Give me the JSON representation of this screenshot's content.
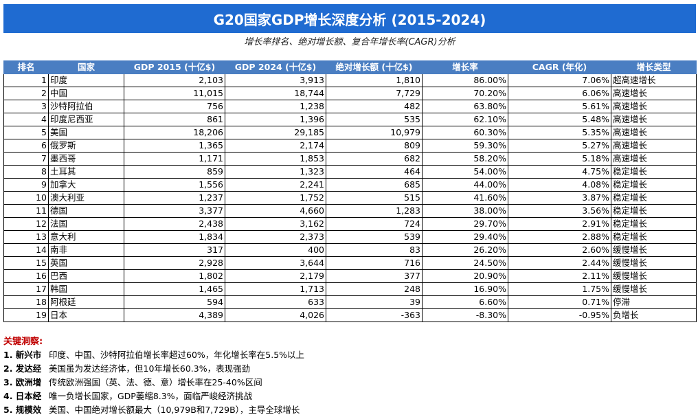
{
  "title": "G20国家GDP增长深度分析 (2015-2024)",
  "subtitle": "增长率排名、绝对增长额、复合年增长率(CAGR)分析",
  "headers": [
    "排名",
    "国家",
    "GDP 2015 (十亿$)",
    "GDP 2024 (十亿$)",
    "绝对增长额 (十亿$)",
    "增长率",
    "CAGR (年化)",
    "增长类型"
  ],
  "rows": [
    [
      "1",
      "印度",
      "2,103",
      "3,913",
      "1,810",
      "86.00%",
      "7.06%",
      "超高速增长"
    ],
    [
      "2",
      "中国",
      "11,015",
      "18,744",
      "7,729",
      "70.20%",
      "6.06%",
      "高速增长"
    ],
    [
      "3",
      "沙特阿拉伯",
      "756",
      "1,238",
      "482",
      "63.80%",
      "5.61%",
      "高速增长"
    ],
    [
      "4",
      "印度尼西亚",
      "861",
      "1,396",
      "535",
      "62.10%",
      "5.48%",
      "高速增长"
    ],
    [
      "5",
      "美国",
      "18,206",
      "29,185",
      "10,979",
      "60.30%",
      "5.35%",
      "高速增长"
    ],
    [
      "6",
      "俄罗斯",
      "1,365",
      "2,174",
      "809",
      "59.30%",
      "5.27%",
      "高速增长"
    ],
    [
      "7",
      "墨西哥",
      "1,171",
      "1,853",
      "682",
      "58.20%",
      "5.18%",
      "高速增长"
    ],
    [
      "8",
      "土耳其",
      "859",
      "1,323",
      "464",
      "54.00%",
      "4.75%",
      "稳定增长"
    ],
    [
      "9",
      "加拿大",
      "1,556",
      "2,241",
      "685",
      "44.00%",
      "4.08%",
      "稳定增长"
    ],
    [
      "10",
      "澳大利亚",
      "1,237",
      "1,752",
      "515",
      "41.60%",
      "3.87%",
      "稳定增长"
    ],
    [
      "11",
      "德国",
      "3,377",
      "4,660",
      "1,283",
      "38.00%",
      "3.56%",
      "稳定增长"
    ],
    [
      "12",
      "法国",
      "2,438",
      "3,162",
      "724",
      "29.70%",
      "2.91%",
      "稳定增长"
    ],
    [
      "13",
      "意大利",
      "1,834",
      "2,373",
      "539",
      "29.40%",
      "2.88%",
      "稳定增长"
    ],
    [
      "14",
      "南非",
      "317",
      "400",
      "83",
      "26.20%",
      "2.60%",
      "缓慢增长"
    ],
    [
      "15",
      "英国",
      "2,928",
      "3,644",
      "716",
      "24.50%",
      "2.44%",
      "缓慢增长"
    ],
    [
      "16",
      "巴西",
      "1,802",
      "2,179",
      "377",
      "20.90%",
      "2.11%",
      "缓慢增长"
    ],
    [
      "17",
      "韩国",
      "1,465",
      "1,713",
      "248",
      "16.90%",
      "1.75%",
      "缓慢增长"
    ],
    [
      "18",
      "阿根廷",
      "594",
      "633",
      "39",
      "6.60%",
      "0.71%",
      "停滞"
    ],
    [
      "19",
      "日本",
      "4,389",
      "4,026",
      "-363",
      "-8.30%",
      "-0.95%",
      "负增长"
    ]
  ],
  "insights": {
    "heading": "关键洞察:",
    "items": [
      {
        "key": "1. 新兴市",
        "text": "印度、中国、沙特阿拉伯增长率超过60%，年化增长率在5.5%以上"
      },
      {
        "key": "2. 发达经",
        "text": "美国虽为发达经济体，但10年增长60.3%，表现强劲"
      },
      {
        "key": "3. 欧洲增",
        "text": "传统欧洲强国（英、法、德、意）增长率在25-40%区间"
      },
      {
        "key": "4. 日本经",
        "text": "唯一负增长国家，GDP萎缩8.3%，面临严峻经济挑战"
      },
      {
        "key": "5. 规模效",
        "text": "美国、中国绝对增长额最大（10,979B和7,729B），主导全球增长"
      }
    ]
  }
}
